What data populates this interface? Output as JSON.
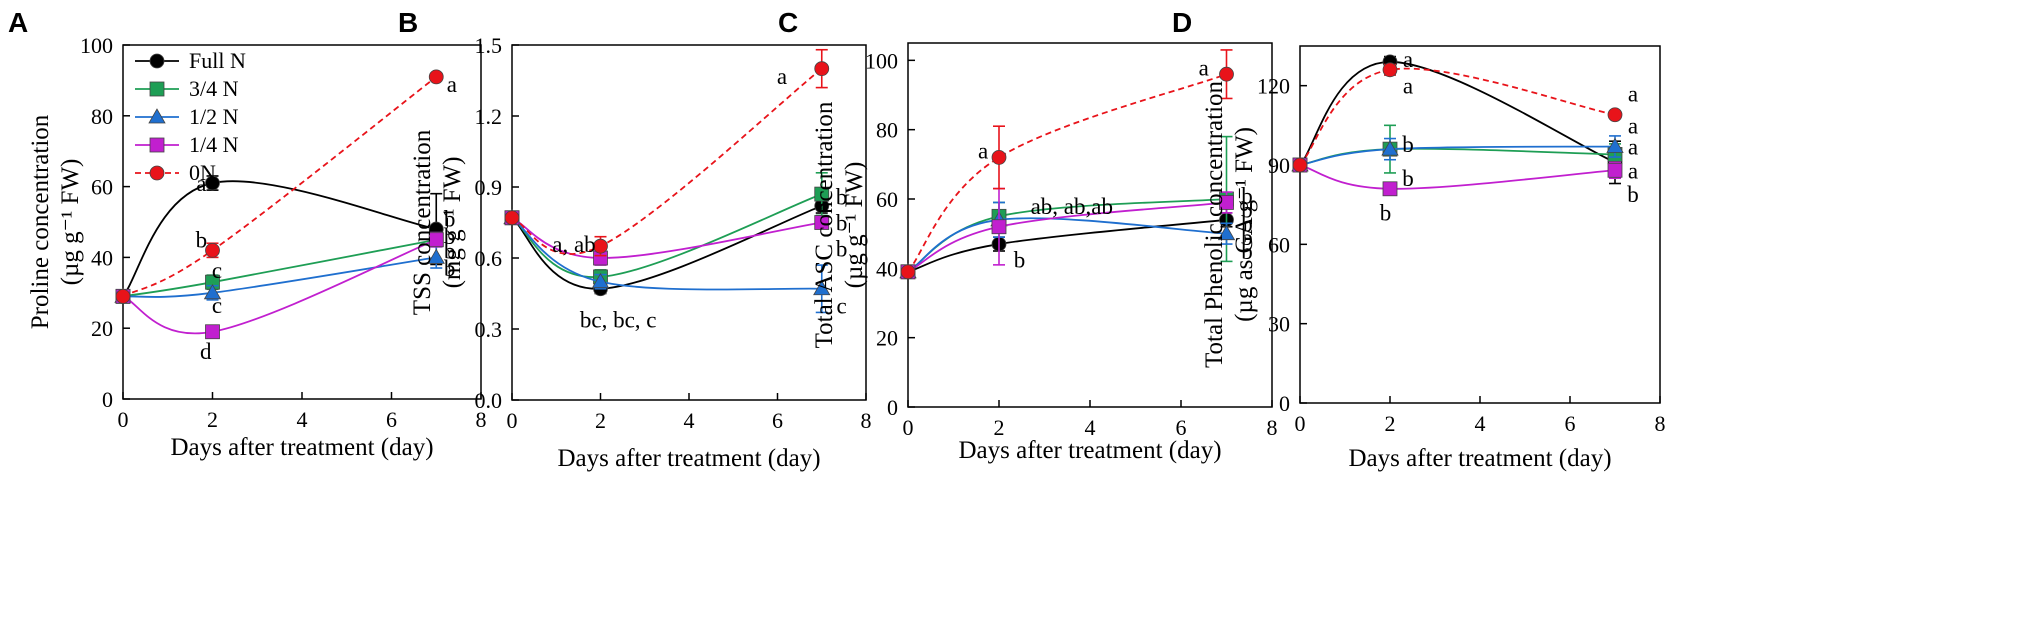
{
  "colors": {
    "Full N": "#000000",
    "3/4 N": "#1e9e55",
    "1/2 N": "#1f6fcf",
    "1/4 N": "#c11fcf",
    "0N": "#e8131a"
  },
  "chart_data": [
    {
      "type": "line",
      "panel": "A",
      "ylabel_lines": [
        "Proline concentration",
        "(µg g⁻¹ FW)"
      ],
      "xlabel": "Days after treatment (day)",
      "xlim": [
        0,
        8
      ],
      "ylim": [
        0,
        100
      ],
      "xticks": [
        0,
        2,
        4,
        6,
        8
      ],
      "yticks": [
        0,
        20,
        40,
        60,
        80,
        100
      ],
      "ytick_labels": [
        "0",
        "20",
        "40",
        "60",
        "80",
        "100"
      ],
      "legend": [
        "Full N",
        "3/4 N",
        "1/2 N",
        "1/4 N",
        "0N"
      ],
      "x": [
        0,
        2,
        7
      ],
      "series": [
        {
          "name": "Full N",
          "marker": "circle",
          "dashed": false,
          "values": [
            29,
            61,
            48
          ],
          "errors": [
            0,
            2,
            10
          ]
        },
        {
          "name": "3/4 N",
          "marker": "square",
          "dashed": false,
          "values": [
            29,
            33,
            45
          ],
          "errors": [
            0,
            2,
            2
          ]
        },
        {
          "name": "1/2 N",
          "marker": "triangle",
          "dashed": false,
          "values": [
            29,
            30,
            40
          ],
          "errors": [
            0,
            2,
            3
          ]
        },
        {
          "name": "1/4 N",
          "marker": "square",
          "dashed": false,
          "values": [
            29,
            19,
            45
          ],
          "errors": [
            0,
            1,
            2
          ]
        },
        {
          "name": "0N",
          "marker": "circle",
          "dashed": true,
          "values": [
            29,
            42,
            91
          ],
          "errors": [
            0,
            2,
            1
          ]
        }
      ],
      "annotations": [
        {
          "text": "a",
          "x": 1.75,
          "y": 61
        },
        {
          "text": "b",
          "x": 1.75,
          "y": 45
        },
        {
          "text": "c",
          "x": 2.1,
          "y": 36.5
        },
        {
          "text": "c",
          "x": 2.1,
          "y": 26.5
        },
        {
          "text": "d",
          "x": 1.85,
          "y": 13.5
        },
        {
          "text": "a",
          "x": 7.35,
          "y": 89
        },
        {
          "text": "b",
          "x": 7.3,
          "y": 51
        },
        {
          "text": "b",
          "x": 7.3,
          "y": 46
        },
        {
          "text": "b",
          "x": 7.3,
          "y": 42
        },
        {
          "text": "b",
          "x": 7.3,
          "y": 37
        }
      ]
    },
    {
      "type": "line",
      "panel": "B",
      "ylabel_lines": [
        "TSS concentration",
        "(mg g⁻¹ FW)"
      ],
      "xlabel": "Days after treatment (day)",
      "xlim": [
        0,
        8
      ],
      "ylim": [
        0,
        1.5
      ],
      "xticks": [
        0,
        2,
        4,
        6,
        8
      ],
      "yticks": [
        0,
        0.3,
        0.6,
        0.9,
        1.2,
        1.5
      ],
      "ytick_labels": [
        "0.0",
        "0.3",
        "0.6",
        "0.9",
        "1.2",
        "1.5"
      ],
      "x": [
        0,
        2,
        7
      ],
      "series": [
        {
          "name": "Full N",
          "marker": "circle",
          "dashed": false,
          "values": [
            0.77,
            0.47,
            0.82
          ],
          "errors": [
            0,
            0.02,
            0.03
          ]
        },
        {
          "name": "3/4 N",
          "marker": "square",
          "dashed": false,
          "values": [
            0.77,
            0.52,
            0.87
          ],
          "errors": [
            0,
            0.03,
            0.09
          ]
        },
        {
          "name": "1/2 N",
          "marker": "triangle",
          "dashed": false,
          "values": [
            0.77,
            0.5,
            0.47
          ],
          "errors": [
            0,
            0.03,
            0.1
          ]
        },
        {
          "name": "1/4 N",
          "marker": "square",
          "dashed": false,
          "values": [
            0.77,
            0.6,
            0.75
          ],
          "errors": [
            0,
            0.03,
            0.02
          ]
        },
        {
          "name": "0N",
          "marker": "circle",
          "dashed": true,
          "values": [
            0.77,
            0.65,
            1.4
          ],
          "errors": [
            0,
            0.04,
            0.08
          ]
        }
      ],
      "annotations": [
        {
          "text": "a, ab",
          "x": 1.4,
          "y": 0.66
        },
        {
          "text": "bc, bc, c",
          "x": 2.4,
          "y": 0.34
        },
        {
          "text": "a",
          "x": 6.1,
          "y": 1.37
        },
        {
          "text": "b",
          "x": 7.45,
          "y": 0.86
        },
        {
          "text": "b",
          "x": 7.45,
          "y": 0.75
        },
        {
          "text": "b",
          "x": 7.45,
          "y": 0.64
        },
        {
          "text": "c",
          "x": 7.45,
          "y": 0.4
        }
      ]
    },
    {
      "type": "line",
      "panel": "C",
      "ylabel_lines": [
        "Total ASC  concentration",
        "(µg g⁻¹ FW)"
      ],
      "xlabel": "Days after treatment (day)",
      "xlim": [
        0,
        8
      ],
      "ylim": [
        0,
        105
      ],
      "xticks": [
        0,
        2,
        4,
        6,
        8
      ],
      "yticks": [
        0,
        20,
        40,
        60,
        80,
        100
      ],
      "ytick_labels": [
        "0",
        "20",
        "40",
        "60",
        "80",
        "100"
      ],
      "x": [
        0,
        2,
        7
      ],
      "series": [
        {
          "name": "Full N",
          "marker": "circle",
          "dashed": false,
          "values": [
            39,
            47,
            54
          ],
          "errors": [
            0,
            2,
            2
          ]
        },
        {
          "name": "3/4 N",
          "marker": "square",
          "dashed": false,
          "values": [
            39,
            55,
            60
          ],
          "errors": [
            0,
            4,
            18
          ]
        },
        {
          "name": "1/2 N",
          "marker": "triangle",
          "dashed": false,
          "values": [
            39,
            54,
            50
          ],
          "errors": [
            0,
            5,
            3
          ]
        },
        {
          "name": "1/4 N",
          "marker": "square",
          "dashed": false,
          "values": [
            39,
            52,
            59
          ],
          "errors": [
            0,
            11,
            3
          ]
        },
        {
          "name": "0N",
          "marker": "circle",
          "dashed": true,
          "values": [
            39,
            72,
            96
          ],
          "errors": [
            0,
            9,
            7
          ]
        }
      ],
      "annotations": [
        {
          "text": "a",
          "x": 1.65,
          "y": 74
        },
        {
          "text": "ab, ab,ab",
          "x": 3.6,
          "y": 58
        },
        {
          "text": "b",
          "x": 2.45,
          "y": 42.5
        },
        {
          "text": "a",
          "x": 6.5,
          "y": 98
        },
        {
          "text": "b",
          "x": 7.45,
          "y": 61
        },
        {
          "text": "b",
          "x": 7.45,
          "y": 57
        },
        {
          "text": "b",
          "x": 7.45,
          "y": 53
        },
        {
          "text": "b",
          "x": 7.45,
          "y": 49
        },
        {
          "text": "b",
          "x": 7.45,
          "y": 45
        }
      ]
    },
    {
      "type": "line",
      "panel": "D",
      "ylabel_lines": [
        "Total Phenolic concentration",
        "(µg as GA g⁻¹ FW)"
      ],
      "xlabel": "Days after treatment (day)",
      "xlim": [
        0,
        8
      ],
      "ylim": [
        0,
        135
      ],
      "xticks": [
        0,
        2,
        4,
        6,
        8
      ],
      "yticks": [
        0,
        30,
        60,
        90,
        120
      ],
      "ytick_labels": [
        "0",
        "30",
        "60",
        "90",
        "120"
      ],
      "x": [
        0,
        2,
        7
      ],
      "series": [
        {
          "name": "Full N",
          "marker": "circle",
          "dashed": false,
          "values": [
            90,
            129,
            91
          ],
          "errors": [
            0,
            2,
            8
          ]
        },
        {
          "name": "3/4 N",
          "marker": "square",
          "dashed": false,
          "values": [
            90,
            96,
            94
          ],
          "errors": [
            0,
            9,
            4
          ]
        },
        {
          "name": "1/2 N",
          "marker": "triangle",
          "dashed": false,
          "values": [
            90,
            96,
            97
          ],
          "errors": [
            0,
            4,
            4
          ]
        },
        {
          "name": "1/4 N",
          "marker": "square",
          "dashed": false,
          "values": [
            90,
            81,
            88
          ],
          "errors": [
            0,
            2,
            3
          ]
        },
        {
          "name": "0N",
          "marker": "circle",
          "dashed": true,
          "values": [
            90,
            126,
            109
          ],
          "errors": [
            0,
            2,
            1
          ]
        }
      ],
      "annotations": [
        {
          "text": "a",
          "x": 2.4,
          "y": 130
        },
        {
          "text": "a",
          "x": 2.4,
          "y": 120
        },
        {
          "text": "b",
          "x": 2.4,
          "y": 98
        },
        {
          "text": "b",
          "x": 2.4,
          "y": 85
        },
        {
          "text": "b",
          "x": 1.9,
          "y": 72
        },
        {
          "text": "a",
          "x": 7.4,
          "y": 117
        },
        {
          "text": "a",
          "x": 7.4,
          "y": 105
        },
        {
          "text": "a",
          "x": 7.4,
          "y": 97
        },
        {
          "text": "a",
          "x": 7.4,
          "y": 88
        },
        {
          "text": "b",
          "x": 7.4,
          "y": 79
        }
      ]
    }
  ]
}
